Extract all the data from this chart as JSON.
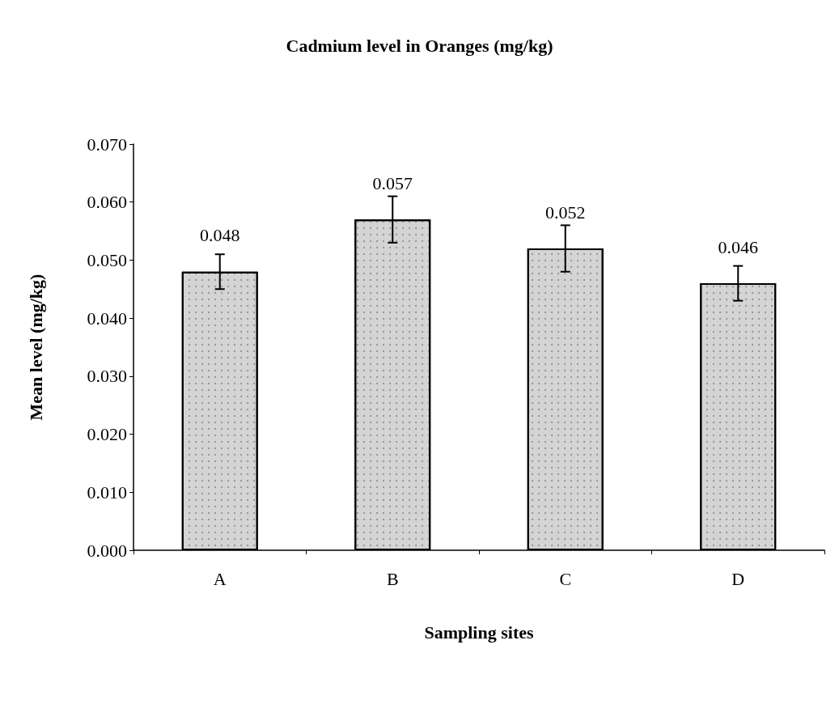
{
  "chart_data": {
    "type": "bar",
    "title": "Cadmium level in Oranges (mg/kg)",
    "xlabel": "Sampling sites",
    "ylabel": "Mean level (mg/kg)",
    "categories": [
      "A",
      "B",
      "C",
      "D"
    ],
    "values": [
      0.048,
      0.057,
      0.052,
      0.046
    ],
    "errors": [
      0.003,
      0.004,
      0.004,
      0.003
    ],
    "color": "#d4d4d4",
    "ylim": [
      0,
      0.07
    ],
    "yticks": [
      {
        "value": 0,
        "label": "0.000"
      },
      {
        "value": 0.01,
        "label": "0.010"
      },
      {
        "value": 0.02,
        "label": "0.020"
      },
      {
        "value": 0.03,
        "label": "0.030"
      },
      {
        "value": 0.04,
        "label": "0.040"
      },
      {
        "value": 0.05,
        "label": "0.050"
      },
      {
        "value": 0.06,
        "label": "0.060"
      },
      {
        "value": 0.07,
        "label": "0.070"
      }
    ],
    "data_labels": true,
    "grid": false
  }
}
